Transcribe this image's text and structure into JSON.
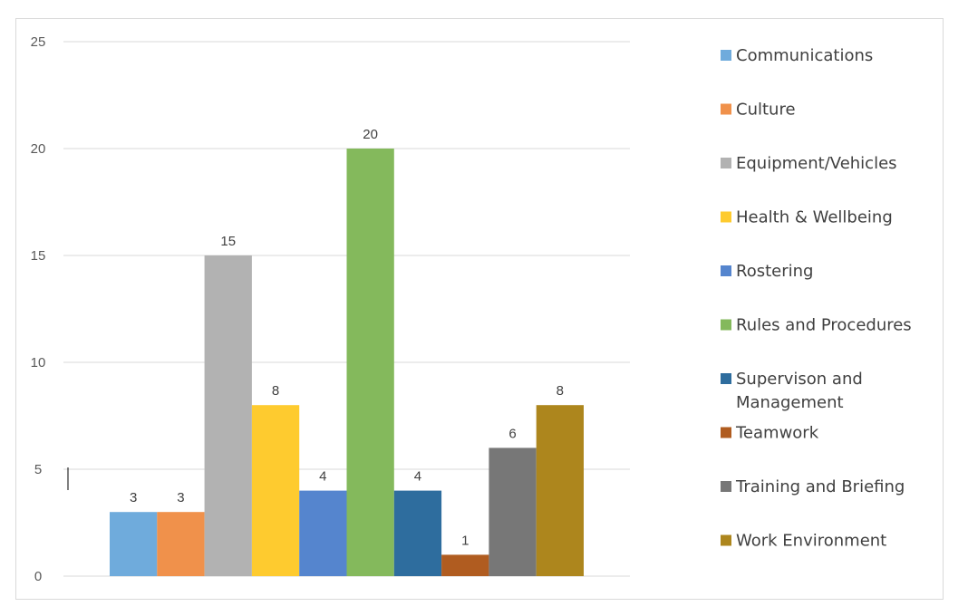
{
  "chart_data": {
    "type": "bar",
    "categories": [
      "Communications",
      "Culture",
      "Equipment/Vehicles",
      "Health & Wellbeing",
      "Rostering",
      "Rules and Procedures",
      "Supervison and Management",
      "Teamwork",
      "Training and Briefing",
      "Work Environment"
    ],
    "values": [
      3,
      3,
      15,
      8,
      4,
      20,
      4,
      1,
      6,
      8
    ],
    "colors": [
      "#6fabdc",
      "#f0914b",
      "#b2b2b2",
      "#fecb2f",
      "#5585ce",
      "#84b95c",
      "#2e6d9e",
      "#b05c20",
      "#777777",
      "#ad861d"
    ],
    "y_ticks": [
      "0",
      "5",
      "10",
      "15",
      "20",
      "25"
    ],
    "ylim": [
      0,
      25
    ],
    "grid": true,
    "data_labels": true,
    "legend_position": "right",
    "title": "",
    "xlabel": "",
    "ylabel": ""
  }
}
